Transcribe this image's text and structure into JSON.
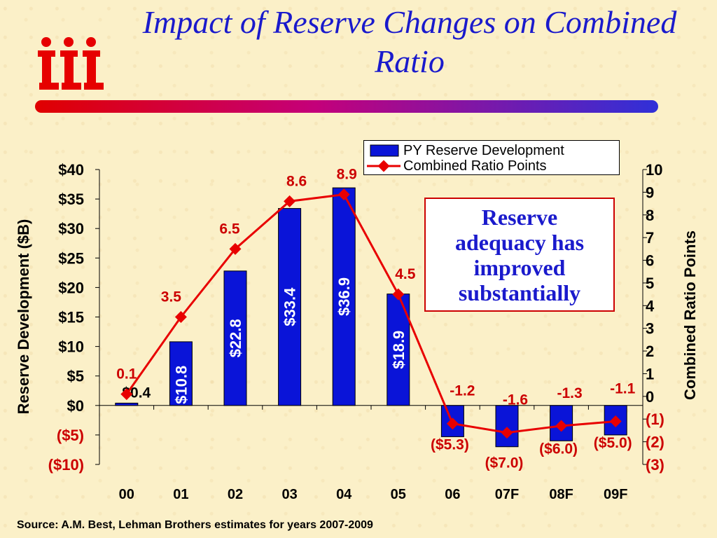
{
  "title": "Impact of Reserve Changes on Combined Ratio",
  "logo_text": "iii",
  "source": "Source: A.M. Best, Lehman Brothers estimates for years 2007-2009",
  "callout": "Reserve\nadequacy has\nimproved\nsubstantially",
  "colors": {
    "bar": "#0a14d8",
    "line": "#e80000",
    "title": "#1a1acc"
  },
  "chart_data": {
    "type": "bar",
    "categories": [
      "00",
      "01",
      "02",
      "03",
      "04",
      "05",
      "06",
      "07F",
      "08F",
      "09F"
    ],
    "series": [
      {
        "name": "PY Reserve Development",
        "axis": "left",
        "values": [
          0.4,
          10.8,
          22.8,
          33.4,
          36.9,
          18.9,
          -5.3,
          -7.0,
          -6.0,
          -5.0
        ],
        "labels": [
          "$0.4",
          "$10.8",
          "$22.8",
          "$33.4",
          "$36.9",
          "$18.9",
          "($5.3)",
          "($7.0)",
          "($6.0)",
          "($5.0)"
        ]
      },
      {
        "name": "Combined Ratio Points",
        "axis": "right",
        "type": "line",
        "values": [
          0.1,
          3.5,
          6.5,
          8.6,
          8.9,
          4.5,
          -1.2,
          -1.6,
          -1.3,
          -1.1
        ],
        "labels": [
          "0.1",
          "3.5",
          "6.5",
          "8.6",
          "8.9",
          "4.5",
          "-1.2",
          "-1.6",
          "-1.3",
          "-1.1"
        ]
      }
    ],
    "ylabel": "Reserve Development ($B)",
    "y2label": "Combined Ratio Points",
    "ylim": [
      -10,
      40
    ],
    "y2lim": [
      -3,
      10
    ],
    "yticks": [
      {
        "v": 40,
        "label": "$40"
      },
      {
        "v": 35,
        "label": "$35"
      },
      {
        "v": 30,
        "label": "$30"
      },
      {
        "v": 25,
        "label": "$25"
      },
      {
        "v": 20,
        "label": "$20"
      },
      {
        "v": 15,
        "label": "$15"
      },
      {
        "v": 10,
        "label": "$10"
      },
      {
        "v": 5,
        "label": "$5"
      },
      {
        "v": 0,
        "label": "$0"
      },
      {
        "v": -5,
        "label": "($5)"
      },
      {
        "v": -10,
        "label": "($10)"
      }
    ],
    "y2ticks": [
      {
        "v": 10,
        "label": "10"
      },
      {
        "v": 9,
        "label": "9"
      },
      {
        "v": 8,
        "label": "8"
      },
      {
        "v": 7,
        "label": "7"
      },
      {
        "v": 6,
        "label": "6"
      },
      {
        "v": 5,
        "label": "5"
      },
      {
        "v": 4,
        "label": "4"
      },
      {
        "v": 3,
        "label": "3"
      },
      {
        "v": 2,
        "label": "2"
      },
      {
        "v": 1,
        "label": "1"
      },
      {
        "v": 0,
        "label": "0"
      },
      {
        "v": -1,
        "label": "(1)"
      },
      {
        "v": -2,
        "label": "(2)"
      },
      {
        "v": -3,
        "label": "(3)"
      }
    ],
    "legend_position": "top-right",
    "grid": false
  }
}
